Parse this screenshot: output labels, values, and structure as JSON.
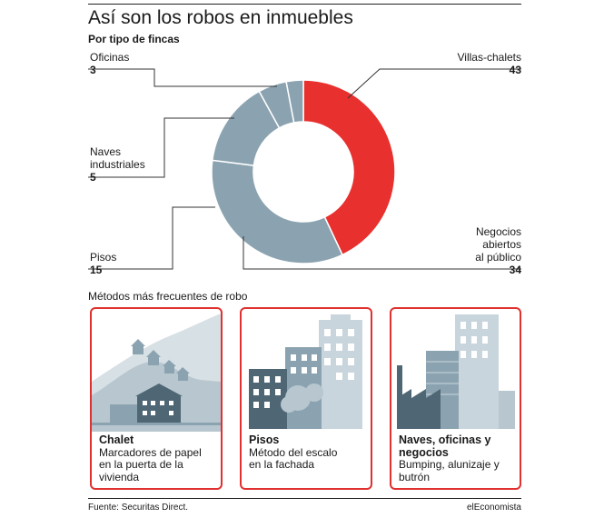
{
  "header": {
    "title": "Así son los robos en inmuebles",
    "subtitle": "Por tipo de fincas"
  },
  "chart_data": {
    "type": "pie",
    "title": "Así son los robos en inmuebles",
    "subtitle": "Por tipo de fincas",
    "series": [
      {
        "name": "Villas-chalets",
        "value": 43,
        "color": "#e8302f"
      },
      {
        "name": "Negocios abiertos al público",
        "value": 34,
        "color": "#8ba3b0"
      },
      {
        "name": "Pisos",
        "value": 15,
        "color": "#8ba3b0"
      },
      {
        "name": "Naves industriales",
        "value": 5,
        "color": "#8ba3b0"
      },
      {
        "name": "Oficinas",
        "value": 3,
        "color": "#8ba3b0"
      }
    ]
  },
  "labels": {
    "villas": {
      "l1": "Villas-chalets",
      "v": "43"
    },
    "negocios": {
      "l1": "Negocios",
      "l2": "abiertos",
      "l3": "al público",
      "v": "34"
    },
    "pisos": {
      "l1": "Pisos",
      "v": "15"
    },
    "naves": {
      "l1": "Naves",
      "l2": "industriales",
      "v": "5"
    },
    "oficinas": {
      "l1": "Oficinas",
      "v": "3"
    }
  },
  "methods": {
    "title": "Métodos más frecuentes de robo",
    "cards": [
      {
        "heading": "Chalet",
        "l1": "Marcadores de papel",
        "l2": "en la puerta de la",
        "l3": "vivienda"
      },
      {
        "heading": "Pisos",
        "l1": "Método del escalo",
        "l2": "en la fachada"
      },
      {
        "heading": "Naves, oficinas y",
        "heading2": "negocios",
        "l1": "Bumping, alunizaje y",
        "l2": "butrón"
      }
    ]
  },
  "footer": {
    "source": "Fuente: Securitas Direct.",
    "brand": "elEconomista"
  },
  "colors": {
    "accent": "#e8302f",
    "slate": "#8ba3b0",
    "dark": "#4f6674",
    "light": "#c9d5dc"
  }
}
